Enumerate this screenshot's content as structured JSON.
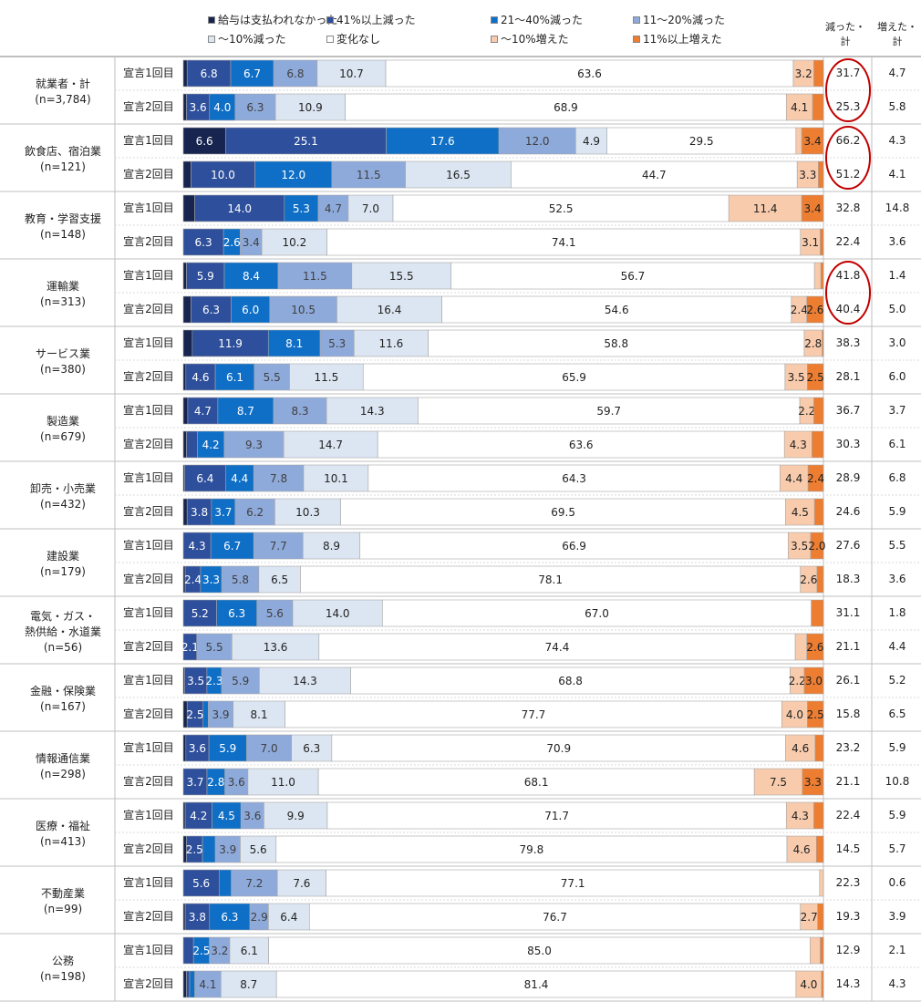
{
  "legend": [
    {
      "label": "給与は支払われなかった",
      "color": "#16244f"
    },
    {
      "label": "41%以上減った",
      "color": "#2e4f9b"
    },
    {
      "label": "21～40%減った",
      "color": "#0f6fc6"
    },
    {
      "label": "11～20%減った",
      "color": "#8eaadb"
    },
    {
      "label": "～10%減った",
      "color": "#dce6f2"
    },
    {
      "label": "変化なし",
      "color": "#ffffff"
    },
    {
      "label": "～10%増えた",
      "color": "#f8cbad"
    },
    {
      "label": "11%以上増えた",
      "color": "#ed7d31"
    }
  ],
  "columns": {
    "decreased_total": "減った・計",
    "increased_total": "増えた・計"
  },
  "waves": [
    "宣言1回目",
    "宣言2回目"
  ],
  "highlight_color": "#c00000",
  "chart_data": {
    "type": "stacked-bar-100",
    "series": [
      "給与は支払われなかった",
      "41%以上減った",
      "21～40%減った",
      "11～20%減った",
      "～10%減った",
      "変化なし",
      "～10%増えた",
      "11%以上増えた"
    ],
    "categories": [
      {
        "name": "就業者・計",
        "n": "(n=3,784)",
        "rows": [
          {
            "wave": "宣言1回目",
            "values": [
              0.6,
              6.8,
              6.7,
              6.8,
              10.7,
              63.6,
              3.2,
              1.5
            ],
            "labels": [
              "",
              "6.8",
              "6.7",
              "6.8",
              "10.7",
              "63.6",
              "3.2",
              ""
            ],
            "decreased": "31.7",
            "increased": "4.7",
            "circled": true
          },
          {
            "wave": "宣言2回目",
            "values": [
              0.5,
              3.6,
              4.0,
              6.3,
              10.9,
              68.9,
              4.1,
              1.7
            ],
            "labels": [
              "",
              "3.6",
              "4.0",
              "6.3",
              "10.9",
              "68.9",
              "4.1",
              ""
            ],
            "decreased": "25.3",
            "increased": "5.8",
            "circled": true
          }
        ]
      },
      {
        "name": "飲食店、宿泊業",
        "n": "(n=121)",
        "rows": [
          {
            "wave": "宣言1回目",
            "values": [
              6.6,
              25.1,
              17.6,
              12.0,
              4.9,
              29.5,
              0.9,
              3.4
            ],
            "labels": [
              "6.6",
              "25.1",
              "17.6",
              "12.0",
              "4.9",
              "29.5",
              "",
              "3.4"
            ],
            "decreased": "66.2",
            "increased": "4.3",
            "circled": true
          },
          {
            "wave": "宣言2回目",
            "values": [
              1.2,
              10.0,
              12.0,
              11.5,
              16.5,
              44.7,
              3.3,
              0.8
            ],
            "labels": [
              "",
              "10.0",
              "12.0",
              "11.5",
              "16.5",
              "44.7",
              "3.3",
              ""
            ],
            "decreased": "51.2",
            "increased": "4.1",
            "circled": true
          }
        ]
      },
      {
        "name": "教育・学習支援",
        "n": "(n=148)",
        "rows": [
          {
            "wave": "宣言1回目",
            "values": [
              1.8,
              14.0,
              5.3,
              4.7,
              7.0,
              52.5,
              11.4,
              3.4
            ],
            "labels": [
              "",
              "14.0",
              "5.3",
              "4.7",
              "7.0",
              "52.5",
              "11.4",
              "3.4"
            ],
            "decreased": "32.8",
            "increased": "14.8"
          },
          {
            "wave": "宣言2回目",
            "values": [
              0.0,
              6.3,
              2.6,
              3.4,
              10.2,
              74.1,
              3.1,
              0.5
            ],
            "labels": [
              "",
              "6.3",
              "2.6",
              "3.4",
              "10.2",
              "74.1",
              "3.1",
              ""
            ],
            "decreased": "22.4",
            "increased": "3.6"
          }
        ]
      },
      {
        "name": "運輸業",
        "n": "(n=313)",
        "rows": [
          {
            "wave": "宣言1回目",
            "values": [
              0.5,
              5.9,
              8.4,
              11.5,
              15.5,
              56.7,
              1.0,
              0.4
            ],
            "labels": [
              "",
              "5.9",
              "8.4",
              "11.5",
              "15.5",
              "56.7",
              "",
              ""
            ],
            "decreased": "41.8",
            "increased": "1.4",
            "circled": true
          },
          {
            "wave": "宣言2回目",
            "values": [
              1.2,
              6.3,
              6.0,
              10.5,
              16.4,
              54.6,
              2.4,
              2.6
            ],
            "labels": [
              "",
              "6.3",
              "6.0",
              "10.5",
              "16.4",
              "54.6",
              "2.4",
              "2.6"
            ],
            "decreased": "40.4",
            "increased": "5.0",
            "circled": true
          }
        ]
      },
      {
        "name": "サービス業",
        "n": "(n=380)",
        "rows": [
          {
            "wave": "宣言1回目",
            "values": [
              1.4,
              11.9,
              8.1,
              5.3,
              11.6,
              58.8,
              2.8,
              0.2
            ],
            "labels": [
              "",
              "11.9",
              "8.1",
              "5.3",
              "11.6",
              "58.8",
              "2.8",
              ""
            ],
            "decreased": "38.3",
            "increased": "3.0"
          },
          {
            "wave": "宣言2回目",
            "values": [
              0.4,
              4.6,
              6.1,
              5.5,
              11.5,
              65.9,
              3.5,
              2.5
            ],
            "labels": [
              "",
              "4.6",
              "6.1",
              "5.5",
              "11.5",
              "65.9",
              "3.5",
              "2.5"
            ],
            "decreased": "28.1",
            "increased": "6.0"
          }
        ]
      },
      {
        "name": "製造業",
        "n": "(n=679)",
        "rows": [
          {
            "wave": "宣言1回目",
            "values": [
              0.7,
              4.7,
              8.7,
              8.3,
              14.3,
              59.7,
              2.2,
              1.5
            ],
            "labels": [
              "",
              "4.7",
              "8.7",
              "8.3",
              "14.3",
              "59.7",
              "2.2",
              ""
            ],
            "decreased": "36.7",
            "increased": "3.7"
          },
          {
            "wave": "宣言2回目",
            "values": [
              0.5,
              1.7,
              4.2,
              9.3,
              14.7,
              63.6,
              4.3,
              1.8
            ],
            "labels": [
              "",
              "",
              "4.2",
              "9.3",
              "14.7",
              "63.6",
              "4.3",
              ""
            ],
            "decreased": "30.3",
            "increased": "6.1"
          }
        ]
      },
      {
        "name": "卸売・小売業",
        "n": "(n=432)",
        "rows": [
          {
            "wave": "宣言1回目",
            "values": [
              0.2,
              6.4,
              4.4,
              7.8,
              10.1,
              64.3,
              4.4,
              2.4
            ],
            "labels": [
              "",
              "6.4",
              "4.4",
              "7.8",
              "10.1",
              "64.3",
              "4.4",
              "2.4"
            ],
            "decreased": "28.9",
            "increased": "6.8"
          },
          {
            "wave": "宣言2回目",
            "values": [
              0.6,
              3.8,
              3.7,
              6.2,
              10.3,
              69.5,
              4.5,
              1.4
            ],
            "labels": [
              "",
              "3.8",
              "3.7",
              "6.2",
              "10.3",
              "69.5",
              "4.5",
              ""
            ],
            "decreased": "24.6",
            "increased": "5.9"
          }
        ]
      },
      {
        "name": "建設業",
        "n": "(n=179)",
        "rows": [
          {
            "wave": "宣言1回目",
            "values": [
              0.0,
              4.3,
              6.7,
              7.7,
              8.9,
              66.9,
              3.5,
              2.0
            ],
            "labels": [
              "",
              "4.3",
              "6.7",
              "7.7",
              "8.9",
              "66.9",
              "3.5",
              "2.0"
            ],
            "decreased": "27.6",
            "increased": "5.5"
          },
          {
            "wave": "宣言2回目",
            "values": [
              0.3,
              2.4,
              3.3,
              5.8,
              6.5,
              78.1,
              2.6,
              1.0
            ],
            "labels": [
              "",
              "2.4",
              "3.3",
              "5.8",
              "6.5",
              "78.1",
              "2.6",
              ""
            ],
            "decreased": "18.3",
            "increased": "3.6"
          }
        ]
      },
      {
        "name": "電気・ガス・熱供給・水道業",
        "name_lines": [
          "電気・ガス・",
          "熱供給・水道業"
        ],
        "n": "(n=56)",
        "rows": [
          {
            "wave": "宣言1回目",
            "values": [
              0.0,
              5.2,
              6.3,
              5.6,
              14.0,
              67.0,
              0.0,
              1.9
            ],
            "labels": [
              "",
              "5.2",
              "6.3",
              "5.6",
              "14.0",
              "67.0",
              "",
              ""
            ],
            "decreased": "31.1",
            "increased": "1.8"
          },
          {
            "wave": "宣言2回目",
            "values": [
              0.0,
              2.1,
              0.0,
              5.5,
              13.6,
              74.4,
              1.8,
              2.6
            ],
            "labels": [
              "",
              "2.1",
              "",
              "5.5",
              "13.6",
              "74.4",
              "",
              "2.6"
            ],
            "decreased": "21.1",
            "increased": "4.4"
          }
        ]
      },
      {
        "name": "金融・保険業",
        "n": "(n=167)",
        "rows": [
          {
            "wave": "宣言1回目",
            "values": [
              0.2,
              3.5,
              2.3,
              5.9,
              14.3,
              68.8,
              2.2,
              3.0
            ],
            "labels": [
              "",
              "3.5",
              "2.3",
              "5.9",
              "14.3",
              "68.8",
              "2.2",
              "3.0"
            ],
            "decreased": "26.1",
            "increased": "5.2"
          },
          {
            "wave": "宣言2回目",
            "values": [
              0.6,
              2.5,
              0.8,
              3.9,
              8.1,
              77.7,
              4.0,
              2.5
            ],
            "labels": [
              "",
              "2.5",
              "",
              "3.9",
              "8.1",
              "77.7",
              "4.0",
              "2.5"
            ],
            "decreased": "15.8",
            "increased": "6.5"
          }
        ]
      },
      {
        "name": "情報通信業",
        "n": "(n=298)",
        "rows": [
          {
            "wave": "宣言1回目",
            "values": [
              0.4,
              3.6,
              5.9,
              7.0,
              6.3,
              70.9,
              4.6,
              1.3
            ],
            "labels": [
              "",
              "3.6",
              "5.9",
              "7.0",
              "6.3",
              "70.9",
              "4.6",
              ""
            ],
            "decreased": "23.2",
            "increased": "5.9"
          },
          {
            "wave": "宣言2回目",
            "values": [
              0.0,
              3.7,
              2.8,
              3.6,
              11.0,
              68.1,
              7.5,
              3.3
            ],
            "labels": [
              "",
              "3.7",
              "2.8",
              "3.6",
              "11.0",
              "68.1",
              "7.5",
              "3.3"
            ],
            "decreased": "21.1",
            "increased": "10.8"
          }
        ]
      },
      {
        "name": "医療・福祉",
        "n": "(n=413)",
        "rows": [
          {
            "wave": "宣言1回目",
            "values": [
              0.3,
              4.2,
              4.5,
              3.6,
              9.9,
              71.7,
              4.3,
              1.5
            ],
            "labels": [
              "",
              "4.2",
              "4.5",
              "3.6",
              "9.9",
              "71.7",
              "4.3",
              ""
            ],
            "decreased": "22.4",
            "increased": "5.9"
          },
          {
            "wave": "宣言2回目",
            "values": [
              0.5,
              2.5,
              2.0,
              3.9,
              5.6,
              79.8,
              4.6,
              1.1
            ],
            "labels": [
              "",
              "2.5",
              "",
              "3.9",
              "5.6",
              "79.8",
              "4.6",
              ""
            ],
            "decreased": "14.5",
            "increased": "5.7"
          }
        ]
      },
      {
        "name": "不動産業",
        "n": "(n=99)",
        "rows": [
          {
            "wave": "宣言1回目",
            "values": [
              0.0,
              5.6,
              1.9,
              7.2,
              7.6,
              77.1,
              0.6,
              0.0
            ],
            "labels": [
              "",
              "5.6",
              "",
              "7.2",
              "7.6",
              "77.1",
              "",
              ""
            ],
            "decreased": "22.3",
            "increased": "0.6"
          },
          {
            "wave": "宣言2回目",
            "values": [
              0.3,
              3.8,
              6.3,
              2.9,
              6.4,
              76.7,
              2.7,
              0.9
            ],
            "labels": [
              "",
              "3.8",
              "6.3",
              "2.9",
              "6.4",
              "76.7",
              "2.7",
              ""
            ],
            "decreased": "19.3",
            "increased": "3.9"
          }
        ]
      },
      {
        "name": "公務",
        "n": "(n=198)",
        "rows": [
          {
            "wave": "宣言1回目",
            "values": [
              0.0,
              1.6,
              2.5,
              3.2,
              6.1,
              85.0,
              1.6,
              0.5
            ],
            "labels": [
              "",
              "",
              "2.5",
              "3.2",
              "6.1",
              "85.0",
              "",
              ""
            ],
            "decreased": "12.9",
            "increased": "2.1"
          },
          {
            "wave": "宣言2回目",
            "values": [
              0.5,
              0.5,
              0.8,
              4.1,
              8.7,
              81.4,
              4.0,
              0.3
            ],
            "labels": [
              "",
              "",
              "",
              "4.1",
              "8.7",
              "81.4",
              "4.0",
              ""
            ],
            "decreased": "14.3",
            "increased": "4.3"
          }
        ]
      }
    ]
  }
}
